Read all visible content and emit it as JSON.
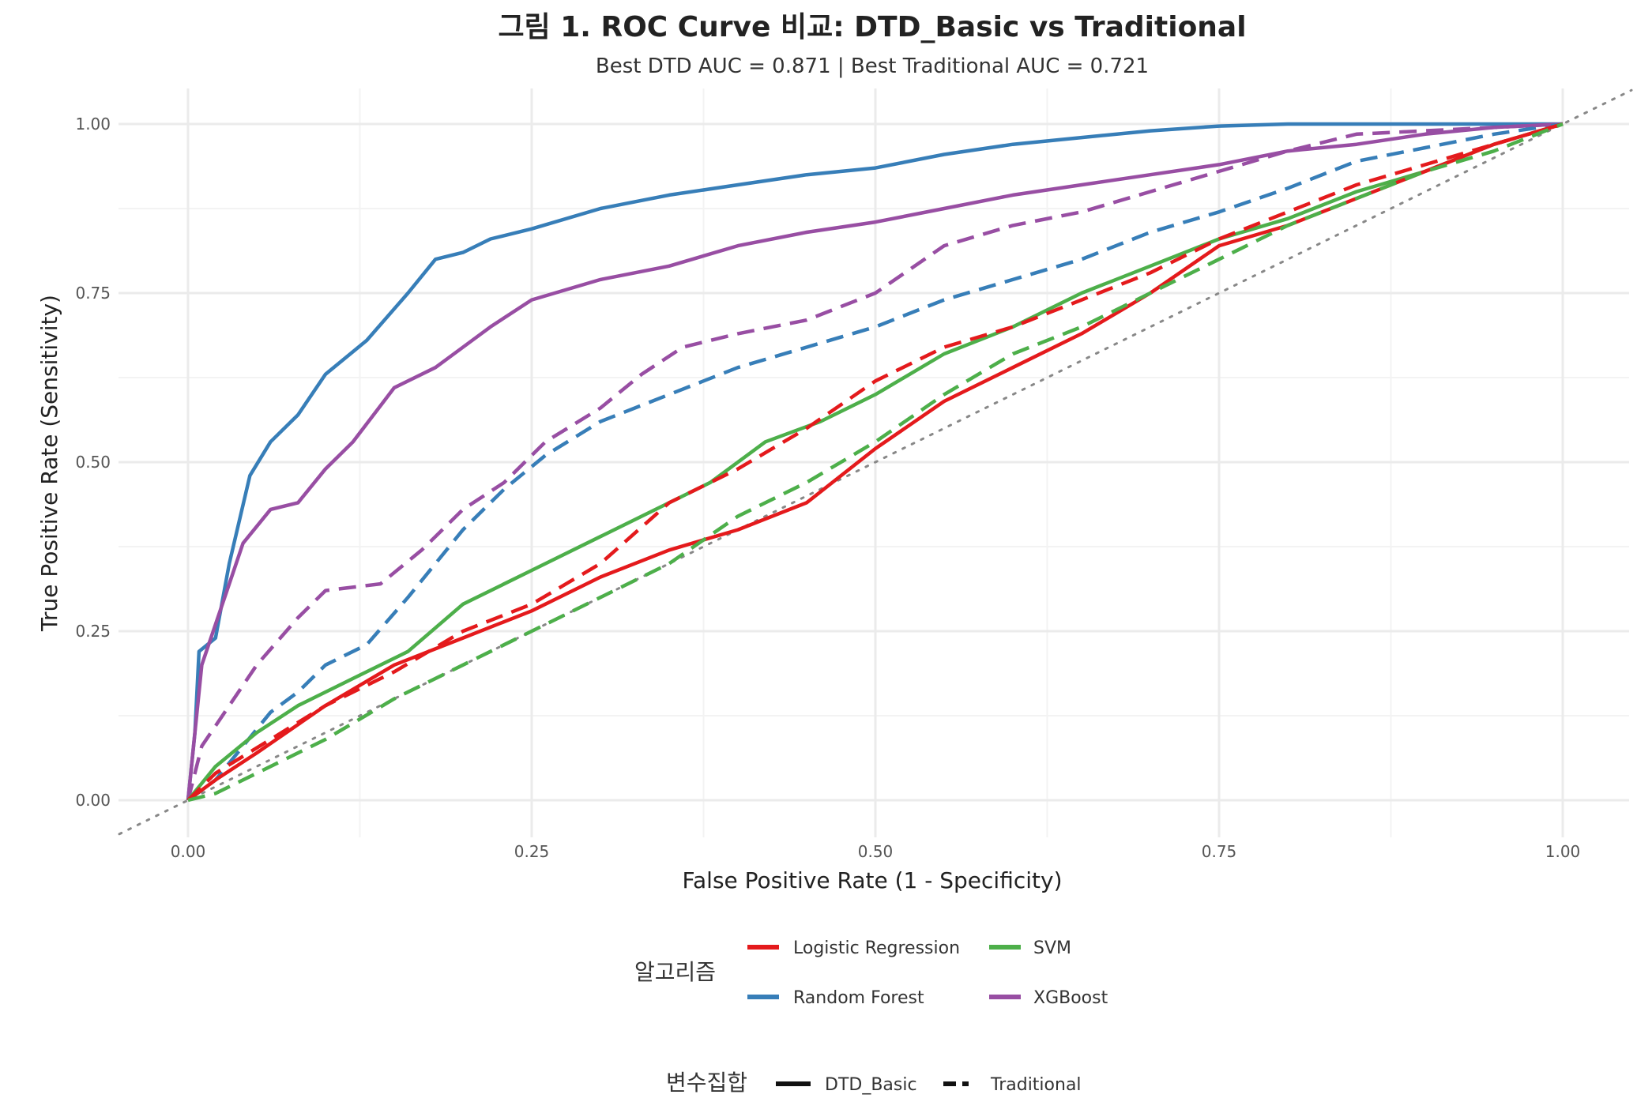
{
  "chart_data": {
    "type": "line",
    "title": "그림 1. ROC Curve 비교: DTD_Basic vs Traditional",
    "subtitle": "Best DTD AUC = 0.871 | Best Traditional AUC = 0.721",
    "xlabel": "False Positive Rate (1 - Specificity)",
    "ylabel": "True Positive Rate (Sensitivity)",
    "xlim": [
      -0.05,
      1.05
    ],
    "ylim": [
      -0.05,
      1.05
    ],
    "x_ticks": [
      "0.00",
      "0.25",
      "0.50",
      "0.75",
      "1.00"
    ],
    "y_ticks": [
      "0.00",
      "0.25",
      "0.50",
      "0.75",
      "1.00"
    ],
    "x_tick_values": [
      0,
      0.25,
      0.5,
      0.75,
      1
    ],
    "y_tick_values": [
      0,
      0.25,
      0.5,
      0.75,
      1
    ],
    "grid": true,
    "reference_line": "diagonal dotted",
    "legend_placement": "bottom",
    "legend": {
      "color_title": "알고리즘",
      "color_entries": [
        {
          "name": "Logistic Regression",
          "color": "#e41a1c"
        },
        {
          "name": "SVM",
          "color": "#4daf4a"
        },
        {
          "name": "Random Forest",
          "color": "#377eb8"
        },
        {
          "name": "XGBoost",
          "color": "#984ea3"
        }
      ],
      "linetype_title": "변수집합",
      "linetype_entries": [
        {
          "name": "DTD_Basic",
          "style": "solid"
        },
        {
          "name": "Traditional",
          "style": "dashed"
        }
      ]
    },
    "series": [
      {
        "algorithm": "Random Forest",
        "varset": "DTD_Basic",
        "color": "#377eb8",
        "dash": "solid",
        "points": [
          [
            0,
            0
          ],
          [
            0.005,
            0.1
          ],
          [
            0.008,
            0.22
          ],
          [
            0.02,
            0.24
          ],
          [
            0.03,
            0.35
          ],
          [
            0.045,
            0.48
          ],
          [
            0.06,
            0.53
          ],
          [
            0.08,
            0.57
          ],
          [
            0.1,
            0.63
          ],
          [
            0.13,
            0.68
          ],
          [
            0.16,
            0.75
          ],
          [
            0.18,
            0.8
          ],
          [
            0.2,
            0.81
          ],
          [
            0.22,
            0.83
          ],
          [
            0.25,
            0.845
          ],
          [
            0.3,
            0.875
          ],
          [
            0.35,
            0.895
          ],
          [
            0.4,
            0.91
          ],
          [
            0.45,
            0.925
          ],
          [
            0.5,
            0.935
          ],
          [
            0.55,
            0.955
          ],
          [
            0.6,
            0.97
          ],
          [
            0.65,
            0.98
          ],
          [
            0.7,
            0.99
          ],
          [
            0.75,
            0.997
          ],
          [
            0.8,
            1.0
          ],
          [
            1.0,
            1.0
          ]
        ]
      },
      {
        "algorithm": "XGBoost",
        "varset": "DTD_Basic",
        "color": "#984ea3",
        "dash": "solid",
        "points": [
          [
            0,
            0
          ],
          [
            0.01,
            0.2
          ],
          [
            0.02,
            0.26
          ],
          [
            0.03,
            0.32
          ],
          [
            0.04,
            0.38
          ],
          [
            0.06,
            0.43
          ],
          [
            0.08,
            0.44
          ],
          [
            0.1,
            0.49
          ],
          [
            0.12,
            0.53
          ],
          [
            0.15,
            0.61
          ],
          [
            0.18,
            0.64
          ],
          [
            0.2,
            0.67
          ],
          [
            0.22,
            0.7
          ],
          [
            0.25,
            0.74
          ],
          [
            0.3,
            0.77
          ],
          [
            0.35,
            0.79
          ],
          [
            0.4,
            0.82
          ],
          [
            0.45,
            0.84
          ],
          [
            0.5,
            0.855
          ],
          [
            0.55,
            0.875
          ],
          [
            0.6,
            0.895
          ],
          [
            0.65,
            0.91
          ],
          [
            0.7,
            0.925
          ],
          [
            0.75,
            0.94
          ],
          [
            0.8,
            0.96
          ],
          [
            0.85,
            0.97
          ],
          [
            0.9,
            0.985
          ],
          [
            0.95,
            0.995
          ],
          [
            1.0,
            1.0
          ]
        ]
      },
      {
        "algorithm": "Random Forest",
        "varset": "Traditional",
        "color": "#377eb8",
        "dash": "dashed",
        "points": [
          [
            0,
            0
          ],
          [
            0.02,
            0.03
          ],
          [
            0.04,
            0.08
          ],
          [
            0.06,
            0.13
          ],
          [
            0.08,
            0.16
          ],
          [
            0.1,
            0.2
          ],
          [
            0.13,
            0.23
          ],
          [
            0.16,
            0.3
          ],
          [
            0.2,
            0.4
          ],
          [
            0.23,
            0.46
          ],
          [
            0.26,
            0.51
          ],
          [
            0.3,
            0.56
          ],
          [
            0.35,
            0.6
          ],
          [
            0.4,
            0.64
          ],
          [
            0.45,
            0.67
          ],
          [
            0.5,
            0.7
          ],
          [
            0.55,
            0.74
          ],
          [
            0.6,
            0.77
          ],
          [
            0.65,
            0.8
          ],
          [
            0.7,
            0.84
          ],
          [
            0.75,
            0.87
          ],
          [
            0.8,
            0.905
          ],
          [
            0.85,
            0.945
          ],
          [
            0.9,
            0.965
          ],
          [
            0.95,
            0.985
          ],
          [
            1.0,
            1.0
          ]
        ]
      },
      {
        "algorithm": "XGBoost",
        "varset": "Traditional",
        "color": "#984ea3",
        "dash": "dashed",
        "points": [
          [
            0,
            0
          ],
          [
            0.01,
            0.08
          ],
          [
            0.03,
            0.14
          ],
          [
            0.05,
            0.2
          ],
          [
            0.08,
            0.27
          ],
          [
            0.1,
            0.31
          ],
          [
            0.14,
            0.32
          ],
          [
            0.17,
            0.37
          ],
          [
            0.2,
            0.43
          ],
          [
            0.23,
            0.47
          ],
          [
            0.26,
            0.53
          ],
          [
            0.3,
            0.58
          ],
          [
            0.33,
            0.63
          ],
          [
            0.36,
            0.67
          ],
          [
            0.4,
            0.69
          ],
          [
            0.45,
            0.71
          ],
          [
            0.5,
            0.75
          ],
          [
            0.55,
            0.82
          ],
          [
            0.6,
            0.85
          ],
          [
            0.65,
            0.87
          ],
          [
            0.7,
            0.9
          ],
          [
            0.75,
            0.93
          ],
          [
            0.8,
            0.96
          ],
          [
            0.85,
            0.985
          ],
          [
            0.9,
            0.99
          ],
          [
            1.0,
            1.0
          ]
        ]
      },
      {
        "algorithm": "SVM",
        "varset": "DTD_Basic",
        "color": "#4daf4a",
        "dash": "solid",
        "points": [
          [
            0,
            0
          ],
          [
            0.02,
            0.05
          ],
          [
            0.05,
            0.1
          ],
          [
            0.08,
            0.14
          ],
          [
            0.12,
            0.18
          ],
          [
            0.16,
            0.22
          ],
          [
            0.2,
            0.29
          ],
          [
            0.25,
            0.34
          ],
          [
            0.3,
            0.39
          ],
          [
            0.35,
            0.44
          ],
          [
            0.38,
            0.47
          ],
          [
            0.42,
            0.53
          ],
          [
            0.46,
            0.56
          ],
          [
            0.5,
            0.6
          ],
          [
            0.55,
            0.66
          ],
          [
            0.6,
            0.7
          ],
          [
            0.65,
            0.75
          ],
          [
            0.7,
            0.79
          ],
          [
            0.75,
            0.83
          ],
          [
            0.8,
            0.86
          ],
          [
            0.85,
            0.9
          ],
          [
            0.9,
            0.93
          ],
          [
            0.95,
            0.97
          ],
          [
            1.0,
            1.0
          ]
        ]
      },
      {
        "algorithm": "Logistic Regression",
        "varset": "DTD_Basic",
        "color": "#e41a1c",
        "dash": "solid",
        "points": [
          [
            0,
            0
          ],
          [
            0.02,
            0.03
          ],
          [
            0.05,
            0.07
          ],
          [
            0.1,
            0.14
          ],
          [
            0.15,
            0.2
          ],
          [
            0.2,
            0.24
          ],
          [
            0.25,
            0.28
          ],
          [
            0.3,
            0.33
          ],
          [
            0.35,
            0.37
          ],
          [
            0.4,
            0.4
          ],
          [
            0.45,
            0.44
          ],
          [
            0.5,
            0.52
          ],
          [
            0.55,
            0.59
          ],
          [
            0.6,
            0.64
          ],
          [
            0.65,
            0.69
          ],
          [
            0.7,
            0.75
          ],
          [
            0.75,
            0.82
          ],
          [
            0.8,
            0.85
          ],
          [
            0.85,
            0.89
          ],
          [
            0.9,
            0.93
          ],
          [
            0.95,
            0.97
          ],
          [
            1.0,
            1.0
          ]
        ]
      },
      {
        "algorithm": "Logistic Regression",
        "varset": "Traditional",
        "color": "#e41a1c",
        "dash": "dashed",
        "points": [
          [
            0,
            0
          ],
          [
            0.02,
            0.04
          ],
          [
            0.06,
            0.09
          ],
          [
            0.1,
            0.14
          ],
          [
            0.15,
            0.19
          ],
          [
            0.2,
            0.25
          ],
          [
            0.25,
            0.29
          ],
          [
            0.3,
            0.35
          ],
          [
            0.35,
            0.44
          ],
          [
            0.4,
            0.49
          ],
          [
            0.45,
            0.55
          ],
          [
            0.5,
            0.62
          ],
          [
            0.55,
            0.67
          ],
          [
            0.6,
            0.7
          ],
          [
            0.65,
            0.74
          ],
          [
            0.7,
            0.78
          ],
          [
            0.75,
            0.83
          ],
          [
            0.8,
            0.87
          ],
          [
            0.85,
            0.91
          ],
          [
            0.9,
            0.94
          ],
          [
            0.95,
            0.97
          ],
          [
            1.0,
            1.0
          ]
        ]
      },
      {
        "algorithm": "SVM",
        "varset": "Traditional",
        "color": "#4daf4a",
        "dash": "dashed",
        "points": [
          [
            0,
            0
          ],
          [
            0.02,
            0.01
          ],
          [
            0.05,
            0.04
          ],
          [
            0.1,
            0.09
          ],
          [
            0.15,
            0.15
          ],
          [
            0.2,
            0.2
          ],
          [
            0.25,
            0.25
          ],
          [
            0.3,
            0.3
          ],
          [
            0.35,
            0.35
          ],
          [
            0.4,
            0.42
          ],
          [
            0.45,
            0.47
          ],
          [
            0.5,
            0.53
          ],
          [
            0.55,
            0.6
          ],
          [
            0.6,
            0.66
          ],
          [
            0.65,
            0.7
          ],
          [
            0.7,
            0.75
          ],
          [
            0.75,
            0.8
          ],
          [
            0.8,
            0.85
          ],
          [
            0.85,
            0.89
          ],
          [
            0.9,
            0.93
          ],
          [
            0.95,
            0.96
          ],
          [
            1.0,
            1.0
          ]
        ]
      }
    ]
  }
}
